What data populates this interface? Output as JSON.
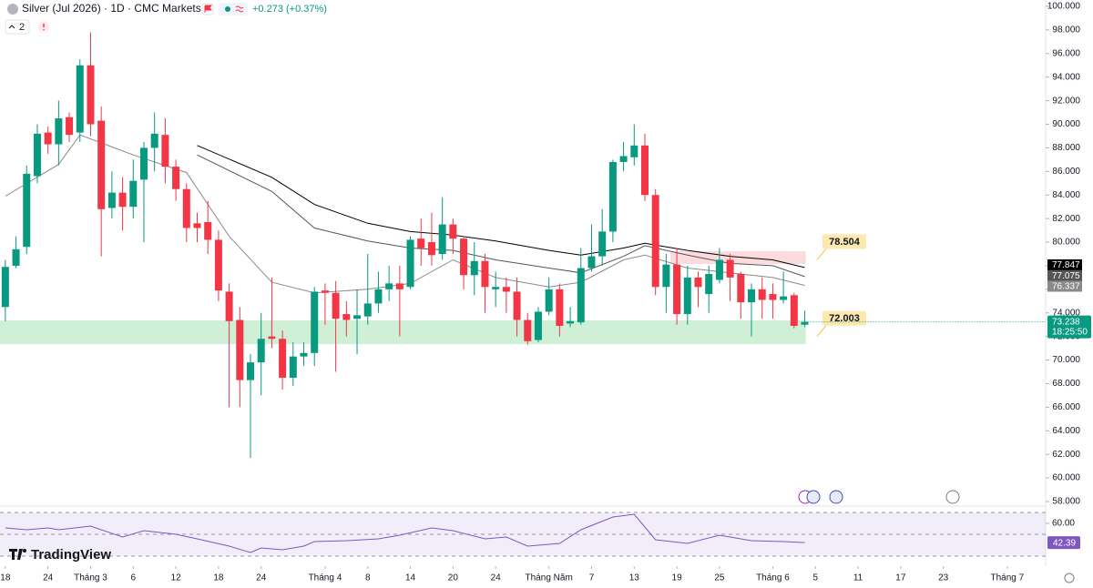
{
  "header": {
    "title": "Silver (Jul 2026) · 1D · CMC Markets",
    "change": "+0.273 (+0.37%)",
    "indicators_count": "2"
  },
  "brand": "TradingView",
  "chart_data": {
    "type": "candlestick",
    "open": [
      74.5,
      78,
      79.6,
      85.6,
      89.3,
      88.3,
      90.6,
      89.3,
      95,
      90.3,
      82.9,
      84.2,
      83,
      85.3,
      88,
      89.1,
      86.4,
      84.5,
      81.6,
      81.7,
      80.2,
      75.8,
      73.4,
      68.3,
      69.8,
      72,
      71.8,
      68.5,
      70.3,
      70.6,
      75.9,
      75.7,
      73.9,
      73.5,
      73.7,
      74.8,
      76,
      76.5,
      76.2,
      80.3,
      80,
      79,
      81.5,
      80.3,
      77.2,
      78.4,
      76,
      76.2,
      75.8,
      73.4,
      71.7,
      74.1,
      76,
      73.1,
      73.2,
      77.8,
      78.8,
      80.9,
      86.8,
      87.2,
      88.2,
      84,
      76.2,
      78.1,
      73.9,
      77,
      75.6,
      76.8,
      78.5,
      77.3,
      74.9,
      76,
      75.6,
      75.1,
      75.5,
      73
    ],
    "high": [
      78.5,
      80.5,
      86.5,
      90,
      89.8,
      92,
      91,
      95.5,
      97.8,
      91.5,
      86,
      85.5,
      87,
      88.5,
      91,
      90.5,
      87,
      85,
      82.5,
      83.5,
      81,
      76.5,
      74.5,
      70.5,
      74,
      77,
      72.5,
      71.5,
      71.5,
      76.2,
      76.5,
      76.7,
      75,
      76,
      79,
      77.5,
      78,
      78,
      80.5,
      82,
      82.5,
      83.8,
      82,
      80.5,
      80,
      79,
      77.5,
      77,
      77,
      74,
      74.5,
      77,
      76.5,
      74.5,
      79.5,
      81.5,
      82.8,
      87,
      88.5,
      90,
      89.2,
      84.5,
      79,
      79.5,
      78,
      77.5,
      78,
      79.5,
      79,
      77.5,
      76.5,
      77,
      76.5,
      77.5,
      75.7,
      74.2
    ],
    "low": [
      73.3,
      77.8,
      79,
      85,
      87.5,
      86.5,
      88.5,
      88.5,
      89,
      78.8,
      82,
      81,
      82,
      80,
      86,
      85,
      83.5,
      80,
      80,
      79,
      75,
      66,
      66,
      61.7,
      67,
      71,
      67.5,
      67.8,
      69.5,
      69.5,
      73,
      69,
      72,
      70.5,
      73,
      74,
      75,
      72,
      76,
      78,
      78,
      78.5,
      79,
      76,
      75.5,
      74,
      74.5,
      74,
      72,
      71.3,
      71.5,
      73.8,
      72,
      72.8,
      73,
      77.5,
      78,
      80,
      86,
      86.5,
      83.5,
      75.5,
      74,
      73,
      73,
      74.5,
      74,
      76.5,
      75,
      73.5,
      72,
      73.5,
      73.5,
      74.8,
      72.7,
      72.8
    ],
    "close": [
      77.9,
      79.4,
      85.8,
      89.2,
      88.3,
      90.5,
      89.1,
      95,
      90,
      82.8,
      84.2,
      83,
      85.2,
      88,
      89.2,
      86.4,
      84.5,
      81.2,
      81.2,
      80.2,
      75.9,
      73.3,
      68.3,
      69.8,
      71.8,
      71.8,
      68.5,
      70.3,
      70.6,
      75.8,
      75.7,
      73.5,
      73.4,
      73.8,
      74.8,
      76,
      76.5,
      76,
      80.2,
      79.5,
      78.9,
      81.5,
      80.3,
      77.2,
      78.4,
      76.2,
      76.2,
      75.8,
      73.4,
      71.6,
      74.1,
      76,
      72.9,
      73.3,
      77.8,
      78.8,
      80.9,
      86.8,
      87.3,
      88.2,
      84,
      76.2,
      78.1,
      73.9,
      77,
      76.2,
      77.3,
      78.5,
      77,
      74.9,
      76,
      75.1,
      75.1,
      75.4,
      72.9,
      73.238
    ],
    "up_color": "#089981",
    "down_color": "#f23645",
    "xlim": [
      -0.5,
      97.6
    ],
    "ylim": [
      57.69,
      100.54
    ],
    "yticks": [
      {
        "value": 58,
        "label": "58.000"
      },
      {
        "value": 60,
        "label": "60.000"
      },
      {
        "value": 62,
        "label": "62.000"
      },
      {
        "value": 64,
        "label": "64.000"
      },
      {
        "value": 66,
        "label": "66.000"
      },
      {
        "value": 68,
        "label": "68.000"
      },
      {
        "value": 70,
        "label": "70.000"
      },
      {
        "value": 72,
        "label": "72.000"
      },
      {
        "value": 74,
        "label": "74.000"
      },
      {
        "value": 76,
        "label": "76.000"
      },
      {
        "value": 78,
        "label": "78.000"
      },
      {
        "value": 80,
        "label": "80.000"
      },
      {
        "value": 82,
        "label": "82.000"
      },
      {
        "value": 84,
        "label": "84.000"
      },
      {
        "value": 86,
        "label": "86.000"
      },
      {
        "value": 88,
        "label": "88.000"
      },
      {
        "value": 90,
        "label": "90.000"
      },
      {
        "value": 92,
        "label": "92.000"
      },
      {
        "value": 94,
        "label": "94.000"
      },
      {
        "value": 96,
        "label": "96.000"
      },
      {
        "value": 98,
        "label": "98.000"
      },
      {
        "value": 100,
        "label": "100.000"
      }
    ],
    "xticks": [
      {
        "value": 0,
        "label": "18"
      },
      {
        "value": 4,
        "label": "24"
      },
      {
        "value": 8,
        "label": "Tháng 3"
      },
      {
        "value": 12,
        "label": "6"
      },
      {
        "value": 16,
        "label": "12"
      },
      {
        "value": 20,
        "label": "18"
      },
      {
        "value": 24,
        "label": "24"
      },
      {
        "value": 30,
        "label": "Tháng 4"
      },
      {
        "value": 34,
        "label": "8"
      },
      {
        "value": 38,
        "label": "14"
      },
      {
        "value": 42,
        "label": "20"
      },
      {
        "value": 46,
        "label": "24"
      },
      {
        "value": 51,
        "label": "Tháng Năm"
      },
      {
        "value": 55,
        "label": "7"
      },
      {
        "value": 59,
        "label": "13"
      },
      {
        "value": 63,
        "label": "19"
      },
      {
        "value": 67,
        "label": "25"
      },
      {
        "value": 72,
        "label": "Tháng 6"
      },
      {
        "value": 76,
        "label": "5"
      },
      {
        "value": 80,
        "label": "11"
      },
      {
        "value": 84,
        "label": "17"
      },
      {
        "value": 88,
        "label": "23"
      },
      {
        "value": 94,
        "label": "Tháng 7"
      }
    ],
    "moving_averages": [
      {
        "color": "#000000",
        "x": [
          18,
          25,
          29,
          34,
          38,
          42,
          46,
          51,
          54,
          58,
          60,
          64,
          68,
          72,
          75
        ],
        "values": [
          88.2,
          85.5,
          83.2,
          81.6,
          80.9,
          80.6,
          80.1,
          79.3,
          78.9,
          79.5,
          79.9,
          79.3,
          78.8,
          78.5,
          77.847
        ]
      },
      {
        "color": "#555555",
        "x": [
          18,
          25,
          29,
          34,
          38,
          42,
          46,
          51,
          54,
          58,
          60,
          64,
          68,
          72,
          75
        ],
        "values": [
          87.4,
          84.3,
          81.2,
          80.1,
          79.5,
          79.3,
          78.5,
          77.8,
          77.4,
          78.8,
          79.7,
          78.9,
          78.2,
          78.0,
          77.075
        ]
      },
      {
        "color": "#8a8a8a",
        "x": [
          0,
          5,
          7,
          12,
          17,
          21,
          25,
          29,
          34,
          38,
          42,
          46,
          51,
          54,
          58,
          60,
          64,
          68,
          72,
          75
        ],
        "values": [
          83.9,
          86.6,
          89.1,
          87.4,
          85.9,
          80.5,
          76.6,
          75.7,
          76.0,
          76.5,
          78.5,
          77.0,
          76.2,
          76.6,
          78.5,
          78.9,
          77.8,
          77.4,
          77.0,
          76.337
        ]
      }
    ],
    "zones": [
      {
        "from": 71.35,
        "to": 73.36,
        "x": [
          -0.5,
          75.1
        ],
        "color": "#c8ecd0"
      },
      {
        "from": 78.15,
        "to": 79.23,
        "x": [
          62.4,
          75.1
        ],
        "color": "#fbd5d9"
      }
    ],
    "annotations": [
      {
        "value": 78.504
      },
      {
        "value": 72.003
      }
    ],
    "countdown": "18:25:50",
    "rsi": {
      "x": [
        0,
        2,
        4,
        5,
        8,
        11,
        13,
        16,
        18,
        21,
        23,
        24,
        26,
        28,
        29,
        32,
        35,
        37,
        40,
        42,
        45,
        47,
        49,
        52,
        54,
        57,
        59,
        61,
        64,
        67,
        70,
        73,
        75
      ],
      "values": [
        55.8,
        54.2,
        55.8,
        54.2,
        57.5,
        47.5,
        53.3,
        50,
        45.8,
        39.2,
        33.3,
        37.5,
        35.8,
        39.2,
        43.3,
        44.2,
        45.8,
        49.2,
        55.8,
        53.3,
        45.8,
        47.5,
        39.2,
        41.7,
        54.2,
        65.8,
        68.3,
        45,
        41.7,
        49.2,
        44.2,
        43.3,
        42.39
      ],
      "ylim": [
        22.5,
        75
      ],
      "yticks": [
        {
          "value": 60,
          "label": "60.00"
        }
      ],
      "bands": [
        70,
        50,
        30
      ],
      "color": "#7e57c2"
    }
  }
}
